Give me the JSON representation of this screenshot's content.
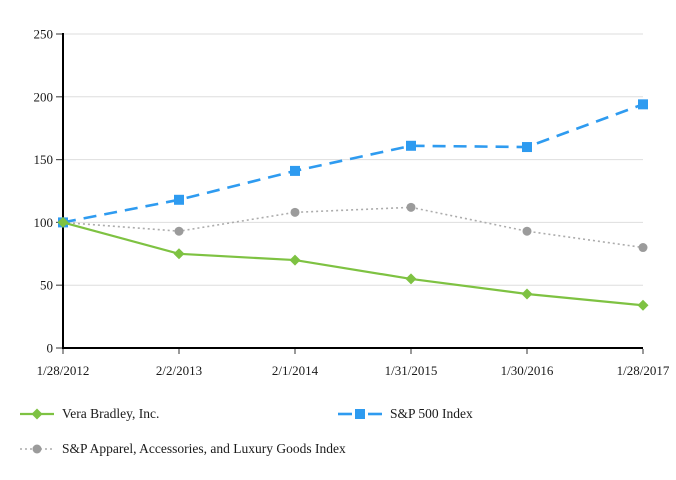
{
  "chart_data": {
    "type": "line",
    "title": "",
    "xlabel": "",
    "ylabel": "",
    "categories": [
      "1/28/2012",
      "2/2/2013",
      "2/1/2014",
      "1/31/2015",
      "1/30/2016",
      "1/28/2017"
    ],
    "series": [
      {
        "name": "Vera Bradley, Inc.",
        "values": [
          100,
          75,
          70,
          55,
          43,
          34
        ],
        "color": "#7EC242",
        "marker": "diamond",
        "marker_color": "#7EC242",
        "line_style": "solid",
        "dash": "",
        "line_width": 2.2
      },
      {
        "name": "S&P 500 Index",
        "values": [
          100,
          118,
          141,
          161,
          160,
          194
        ],
        "color": "#2E9BF0",
        "marker": "square",
        "marker_color": "#2E9BF0",
        "line_style": "dashed",
        "dash": "13 8",
        "line_width": 2.6
      },
      {
        "name": "S&P Apparel, Accessories, and Luxury Goods Index",
        "values": [
          100,
          93,
          108,
          112,
          93,
          80
        ],
        "color": "#ACACAC",
        "marker": "circle",
        "marker_color": "#9B9B9B",
        "line_style": "dotted",
        "dash": "2 3",
        "line_width": 1.6
      }
    ],
    "ylim": [
      0,
      250
    ],
    "yticks": [
      0,
      50,
      100,
      150,
      200,
      250
    ],
    "grid": true,
    "grid_color": "#DEDEDE",
    "axis_color": "#000000",
    "tick_color": "#555555",
    "legend_position": "bottom"
  }
}
